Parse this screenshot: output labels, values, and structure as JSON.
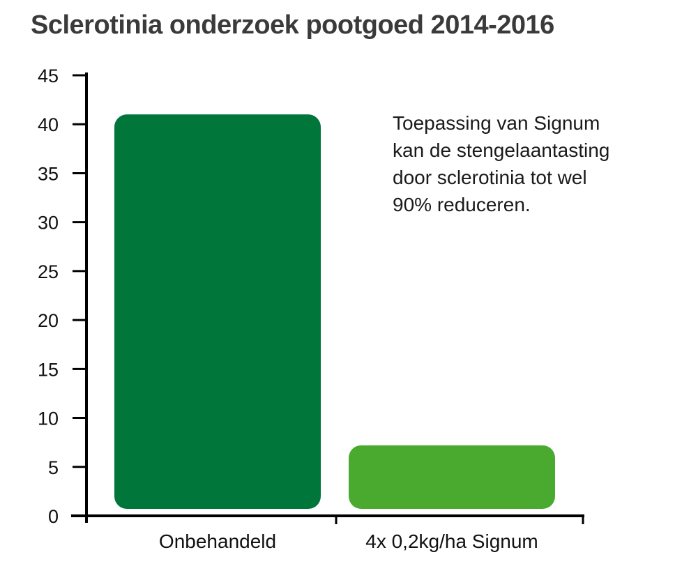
{
  "chart_data": {
    "type": "bar",
    "title": "Sclerotinia onderzoek pootgoed 2014-2016",
    "categories": [
      "Onbehandeld",
      "4x 0,2kg/ha Signum"
    ],
    "values": [
      41,
      7.2
    ],
    "colors": [
      "#00763a",
      "#4aaa2f"
    ],
    "ylim": [
      0,
      45
    ],
    "yticks": [
      0,
      5,
      10,
      15,
      20,
      25,
      30,
      35,
      40,
      45
    ],
    "xlabel": "",
    "ylabel": "",
    "grid": false,
    "annotation": [
      "Toepassing van Signum",
      "kan de stengelaantasting",
      "door sclerotinia tot wel",
      "90% reduceren."
    ]
  }
}
